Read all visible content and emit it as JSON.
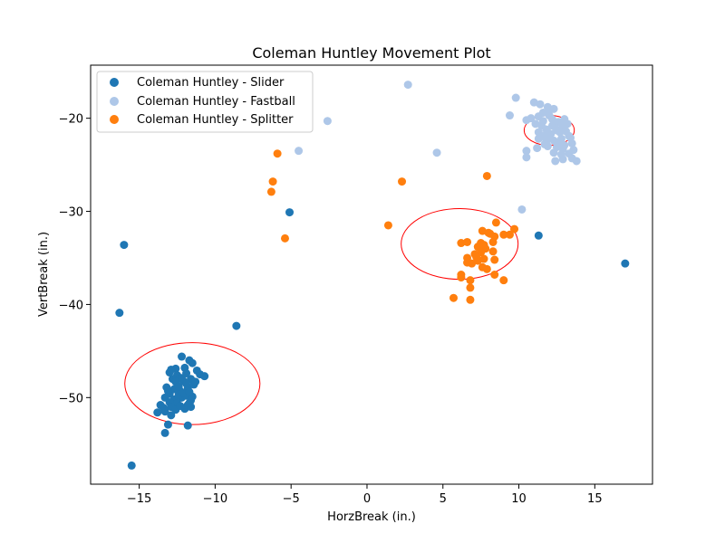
{
  "chart_data": {
    "type": "scatter",
    "title": "Coleman Huntley Movement Plot",
    "xlabel": "HorzBreak (in.)",
    "ylabel": "VertBreak (in.)",
    "xlim": [
      -18.2,
      18.8
    ],
    "ylim": [
      -59.3,
      -14.3
    ],
    "xticks": [
      -15,
      -10,
      -5,
      0,
      5,
      10,
      15
    ],
    "yticks": [
      -20,
      -30,
      -40,
      -50
    ],
    "xtick_labels": [
      "−15",
      "−10",
      "−5",
      "0",
      "5",
      "10",
      "15"
    ],
    "ytick_labels": [
      "−20",
      "−30",
      "−40",
      "−50"
    ],
    "grid": false,
    "legend_position": "upper-left",
    "series": [
      {
        "name": "Coleman Huntley - Slider",
        "color": "#1f77b4",
        "points": [
          [
            -15.5,
            -57.3
          ],
          [
            -16.3,
            -40.9
          ],
          [
            -16.0,
            -33.6
          ],
          [
            -8.6,
            -42.3
          ],
          [
            -5.1,
            -30.1
          ],
          [
            11.3,
            -32.6
          ],
          [
            17.0,
            -35.6
          ],
          [
            -13.3,
            -53.8
          ],
          [
            -13.1,
            -52.9
          ],
          [
            -11.8,
            -53.0
          ],
          [
            -12.2,
            -45.6
          ],
          [
            -11.7,
            -46.0
          ],
          [
            -11.5,
            -46.3
          ],
          [
            -12.6,
            -46.9
          ],
          [
            -13.0,
            -47.3
          ],
          [
            -12.5,
            -47.6
          ],
          [
            -11.2,
            -47.1
          ],
          [
            -11.0,
            -47.5
          ],
          [
            -10.7,
            -47.7
          ],
          [
            -11.6,
            -48.0
          ],
          [
            -12.1,
            -48.2
          ],
          [
            -12.8,
            -48.0
          ],
          [
            -13.2,
            -48.9
          ],
          [
            -12.3,
            -49.3
          ],
          [
            -11.8,
            -49.0
          ],
          [
            -11.4,
            -48.6
          ],
          [
            -13.0,
            -49.6
          ],
          [
            -13.3,
            -50.0
          ],
          [
            -12.7,
            -50.2
          ],
          [
            -12.2,
            -50.0
          ],
          [
            -11.9,
            -49.8
          ],
          [
            -11.6,
            -50.3
          ],
          [
            -11.8,
            -50.8
          ],
          [
            -12.5,
            -50.6
          ],
          [
            -13.0,
            -50.5
          ],
          [
            -13.6,
            -50.8
          ],
          [
            -12.9,
            -51.0
          ],
          [
            -12.6,
            -51.3
          ],
          [
            -12.0,
            -51.2
          ],
          [
            -11.6,
            -51.0
          ],
          [
            -13.8,
            -51.6
          ],
          [
            -13.3,
            -51.5
          ],
          [
            -12.9,
            -51.9
          ],
          [
            -12.4,
            -49.7
          ],
          [
            -12.1,
            -49.5
          ],
          [
            -11.9,
            -48.5
          ],
          [
            -12.6,
            -48.3
          ],
          [
            -12.2,
            -47.9
          ],
          [
            -11.9,
            -47.4
          ],
          [
            -12.7,
            -49.1
          ],
          [
            -13.1,
            -49.3
          ],
          [
            -11.5,
            -49.9
          ],
          [
            -11.7,
            -50.6
          ],
          [
            -12.3,
            -50.9
          ],
          [
            -13.4,
            -51.1
          ],
          [
            -12.0,
            -46.8
          ],
          [
            -11.3,
            -48.3
          ],
          [
            -12.9,
            -47.0
          ],
          [
            -12.4,
            -48.8
          ],
          [
            -11.7,
            -49.4
          ]
        ]
      },
      {
        "name": "Coleman Huntley - Fastball",
        "color": "#aec7e8",
        "points": [
          [
            2.7,
            -16.4
          ],
          [
            -2.6,
            -20.3
          ],
          [
            -4.5,
            -23.5
          ],
          [
            4.6,
            -23.7
          ],
          [
            9.8,
            -17.8
          ],
          [
            9.4,
            -19.7
          ],
          [
            10.2,
            -29.8
          ],
          [
            10.5,
            -23.5
          ],
          [
            10.5,
            -24.2
          ],
          [
            11.0,
            -18.3
          ],
          [
            11.4,
            -18.5
          ],
          [
            11.9,
            -18.8
          ],
          [
            12.3,
            -19.0
          ],
          [
            11.6,
            -19.4
          ],
          [
            12.0,
            -19.7
          ],
          [
            11.3,
            -19.8
          ],
          [
            10.8,
            -20.0
          ],
          [
            10.5,
            -20.2
          ],
          [
            11.1,
            -20.6
          ],
          [
            11.6,
            -20.3
          ],
          [
            12.2,
            -20.1
          ],
          [
            12.6,
            -20.4
          ],
          [
            12.9,
            -20.9
          ],
          [
            12.4,
            -21.0
          ],
          [
            11.8,
            -21.2
          ],
          [
            11.3,
            -21.5
          ],
          [
            11.6,
            -21.9
          ],
          [
            12.1,
            -21.7
          ],
          [
            12.7,
            -21.5
          ],
          [
            13.1,
            -21.4
          ],
          [
            13.3,
            -21.9
          ],
          [
            12.8,
            -22.2
          ],
          [
            12.3,
            -22.4
          ],
          [
            11.8,
            -22.5
          ],
          [
            11.3,
            -22.2
          ],
          [
            11.9,
            -23.0
          ],
          [
            12.5,
            -23.1
          ],
          [
            13.0,
            -22.9
          ],
          [
            13.5,
            -22.7
          ],
          [
            12.3,
            -23.7
          ],
          [
            12.8,
            -23.9
          ],
          [
            13.3,
            -23.8
          ],
          [
            13.5,
            -24.3
          ],
          [
            12.9,
            -24.4
          ],
          [
            12.4,
            -24.6
          ],
          [
            13.8,
            -24.6
          ],
          [
            13.6,
            -23.4
          ],
          [
            12.0,
            -22.0
          ],
          [
            11.5,
            -20.8
          ],
          [
            12.5,
            -21.3
          ],
          [
            13.2,
            -20.6
          ],
          [
            11.9,
            -21.5
          ],
          [
            12.6,
            -22.7
          ],
          [
            11.2,
            -23.2
          ],
          [
            13.0,
            -20.1
          ],
          [
            12.2,
            -20.8
          ],
          [
            11.7,
            -22.8
          ],
          [
            13.4,
            -22.1
          ],
          [
            12.0,
            -19.2
          ],
          [
            12.9,
            -23.3
          ]
        ]
      },
      {
        "name": "Coleman Huntley - Splitter",
        "color": "#ff7f0e",
        "points": [
          [
            -5.9,
            -23.8
          ],
          [
            -6.2,
            -26.8
          ],
          [
            -6.3,
            -27.9
          ],
          [
            -5.4,
            -32.9
          ],
          [
            1.4,
            -31.5
          ],
          [
            2.3,
            -26.8
          ],
          [
            7.9,
            -26.2
          ],
          [
            6.2,
            -33.4
          ],
          [
            6.6,
            -33.3
          ],
          [
            7.3,
            -33.8
          ],
          [
            7.6,
            -32.1
          ],
          [
            8.1,
            -32.4
          ],
          [
            8.5,
            -31.2
          ],
          [
            8.4,
            -32.7
          ],
          [
            9.0,
            -32.5
          ],
          [
            9.7,
            -31.9
          ],
          [
            9.4,
            -32.5
          ],
          [
            7.5,
            -33.4
          ],
          [
            7.8,
            -34.0
          ],
          [
            7.5,
            -34.4
          ],
          [
            7.1,
            -34.6
          ],
          [
            6.6,
            -35.0
          ],
          [
            6.9,
            -35.6
          ],
          [
            7.3,
            -35.3
          ],
          [
            7.7,
            -35.1
          ],
          [
            8.3,
            -34.3
          ],
          [
            8.4,
            -35.2
          ],
          [
            7.9,
            -36.2
          ],
          [
            7.6,
            -36.0
          ],
          [
            6.2,
            -36.8
          ],
          [
            6.2,
            -37.1
          ],
          [
            6.8,
            -37.4
          ],
          [
            8.4,
            -36.8
          ],
          [
            9.0,
            -37.4
          ],
          [
            6.8,
            -38.2
          ],
          [
            5.7,
            -39.3
          ],
          [
            6.8,
            -39.5
          ],
          [
            8.3,
            -33.3
          ],
          [
            7.7,
            -33.6
          ],
          [
            6.6,
            -35.5
          ],
          [
            7.2,
            -34.9
          ],
          [
            8.0,
            -32.3
          ]
        ]
      }
    ],
    "ellipses": [
      {
        "color": "#ff0000",
        "center": [
          -11.5,
          -48.5
        ],
        "width": 8.9,
        "height": 8.8
      },
      {
        "color": "#ff0000",
        "center": [
          6.1,
          -33.5
        ],
        "width": 7.7,
        "height": 7.6
      },
      {
        "color": "#ff0000",
        "center": [
          12.0,
          -21.3
        ],
        "width": 3.3,
        "height": 3.2
      }
    ]
  }
}
